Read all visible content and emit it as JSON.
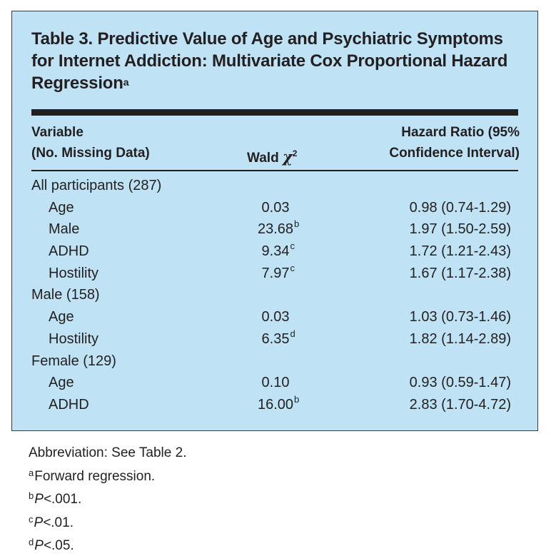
{
  "title": {
    "text": "Table 3. Predictive Value of Age and Psychiatric Symptoms for Internet Addiction: Multivariate Cox Proportional Hazard Regression",
    "footnote_mark": "a"
  },
  "header": {
    "variable_line1": "Variable",
    "variable_line2": "(No. Missing Data)",
    "wald_text": "Wald ",
    "wald_chi": "χ",
    "wald_sup": "2",
    "hr_line1": "Hazard Ratio (95%",
    "hr_line2": "Confidence Interval)"
  },
  "rows": [
    {
      "label": "All participants (287)",
      "wald": "",
      "sup": "",
      "hr": "",
      "group": true
    },
    {
      "label": "Age",
      "wald": "0.03",
      "sup": "",
      "hr": "0.98 (0.74-1.29)"
    },
    {
      "label": "Male",
      "wald": "23.68",
      "sup": "b",
      "hr": "1.97 (1.50-2.59)"
    },
    {
      "label": "ADHD",
      "wald": "9.34",
      "sup": "c",
      "hr": "1.72 (1.21-2.43)"
    },
    {
      "label": "Hostility",
      "wald": "7.97",
      "sup": "c",
      "hr": "1.67 (1.17-2.38)"
    },
    {
      "label": "Male (158)",
      "wald": "",
      "sup": "",
      "hr": "",
      "group": true
    },
    {
      "label": "Age",
      "wald": "0.03",
      "sup": "",
      "hr": "1.03 (0.73-1.46)"
    },
    {
      "label": "Hostility",
      "wald": "6.35",
      "sup": "d",
      "hr": "1.82 (1.14-2.89)"
    },
    {
      "label": "Female (129)",
      "wald": "",
      "sup": "",
      "hr": "",
      "group": true
    },
    {
      "label": "Age",
      "wald": "0.10",
      "sup": "",
      "hr": "0.93 (0.59-1.47)"
    },
    {
      "label": "ADHD",
      "wald": "16.00",
      "sup": "b",
      "hr": "2.83 (1.70-4.72)"
    }
  ],
  "notes": {
    "abbreviation": "Abbreviation: See Table 2.",
    "footnotes": [
      {
        "mark": "a",
        "text": "Forward regression.",
        "p": ""
      },
      {
        "mark": "b",
        "text": ".001.",
        "p": "P<"
      },
      {
        "mark": "c",
        "text": ".01.",
        "p": "P<"
      },
      {
        "mark": "d",
        "text": ".05.",
        "p": "P<"
      }
    ]
  }
}
